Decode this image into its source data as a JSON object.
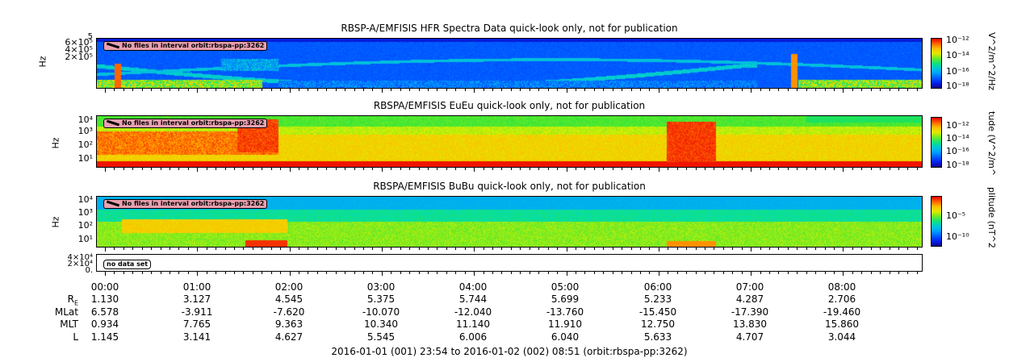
{
  "panels": [
    {
      "title": "RBSP-A/EMFISIS  HFR Spectra Data quick-look only, not for publication",
      "ylabel": "Hz",
      "yticks": [
        "6×10⁵",
        "4×10⁵",
        "2×10⁵"
      ],
      "ytop": "5",
      "notice": "No files in interval orbit:rbspa-pp:3262",
      "cbar_label": "V^2/m^2/Hz",
      "cbar_ticks": [
        "10⁻¹²",
        "10⁻¹⁴",
        "10⁻¹⁶",
        "10⁻¹⁸"
      ]
    },
    {
      "title": "RBSPA/EMFISIS  EuEu quick-look only, not for publication",
      "ylabel": "Hz",
      "yticks": [
        "10⁴",
        "10³",
        "10²",
        "10¹"
      ],
      "notice": "No files in interval orbit:rbspa-pp:3262",
      "cbar_label": "tude (V^2/m^",
      "cbar_ticks": [
        "10⁻¹²",
        "10⁻¹⁴",
        "10⁻¹⁶",
        "10⁻¹⁸"
      ]
    },
    {
      "title": "RBSPA/EMFISIS  BuBu quick-look only, not for publication",
      "ylabel": "Hz",
      "yticks": [
        "10⁴",
        "10³",
        "10²",
        "10¹"
      ],
      "notice": "No files in interval orbit:rbspa-pp:3262",
      "cbar_label": "plitude (nT^2",
      "cbar_ticks": [
        "10⁻⁵",
        "10⁻¹⁰"
      ]
    },
    {
      "yticks": [
        "4×10⁴",
        "2×10⁴",
        "0."
      ],
      "notice": "no data set"
    }
  ],
  "chart_data": {
    "type": "heatmap",
    "x_ticks": [
      "00:00",
      "01:00",
      "02:00",
      "03:00",
      "04:00",
      "05:00",
      "06:00",
      "07:00",
      "08:00"
    ],
    "ephemeris": [
      {
        "label": "R",
        "sub": "E",
        "values": [
          "1.130",
          "3.127",
          "4.545",
          "5.375",
          "5.744",
          "5.699",
          "5.233",
          "4.287",
          "2.706"
        ]
      },
      {
        "label": "MLat",
        "values": [
          "6.578",
          "-3.911",
          "-7.620",
          "-10.070",
          "-12.040",
          "-13.760",
          "-15.450",
          "-17.390",
          "-19.460"
        ]
      },
      {
        "label": "MLT",
        "values": [
          "0.934",
          "7.765",
          "9.363",
          "10.340",
          "11.140",
          "11.910",
          "12.750",
          "13.830",
          "15.860"
        ]
      },
      {
        "label": "L",
        "values": [
          "1.145",
          "3.141",
          "4.627",
          "5.545",
          "6.006",
          "6.040",
          "5.633",
          "4.707",
          "3.044"
        ]
      }
    ],
    "footer": "2016-01-01 (001) 23:54 to 2016-01-02 (002) 08:51 (orbit:rbspa-pp:3262)"
  }
}
